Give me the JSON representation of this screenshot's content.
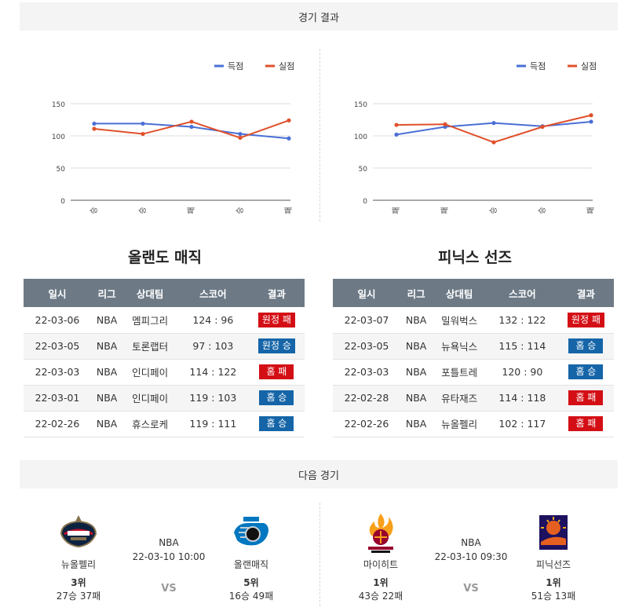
{
  "headers": {
    "results": "경기 결과",
    "next": "다음 경기"
  },
  "legend": {
    "scored": "득점",
    "conceded": "실점"
  },
  "colors": {
    "scored": "#4a6fd6",
    "conceded": "#e0502a",
    "win": "#1565a8",
    "loss": "#d30f15",
    "header_bg": "#6d7a86"
  },
  "chart_data": [
    {
      "type": "line",
      "categories": [
        "승",
        "승",
        "패",
        "승",
        "패"
      ],
      "series": [
        {
          "name": "득점",
          "values": [
            119,
            119,
            114,
            103,
            96
          ]
        },
        {
          "name": "실점",
          "values": [
            111,
            103,
            122,
            97,
            124
          ]
        }
      ],
      "yticks": [
        0,
        50,
        100,
        150
      ],
      "ylim": [
        0,
        150
      ],
      "legend": "top-right",
      "grid": true
    },
    {
      "type": "line",
      "categories": [
        "패",
        "패",
        "승",
        "승",
        "패"
      ],
      "series": [
        {
          "name": "득점",
          "values": [
            102,
            114,
            120,
            115,
            122
          ]
        },
        {
          "name": "실점",
          "values": [
            117,
            118,
            90,
            114,
            132
          ]
        }
      ],
      "yticks": [
        0,
        50,
        100,
        150
      ],
      "ylim": [
        0,
        150
      ],
      "legend": "top-right",
      "grid": true
    }
  ],
  "table_columns": [
    "일시",
    "리그",
    "상대팀",
    "스코어",
    "결과"
  ],
  "teams": [
    {
      "name": "올랜도 매직",
      "games": [
        {
          "date": "22-03-06",
          "league": "NBA",
          "opponent": "멤피그리",
          "score": "124 : 96",
          "result": "원정 패",
          "outcome": "loss"
        },
        {
          "date": "22-03-05",
          "league": "NBA",
          "opponent": "토론랩터",
          "score": "97 : 103",
          "result": "원정 승",
          "outcome": "win"
        },
        {
          "date": "22-03-03",
          "league": "NBA",
          "opponent": "인디페이",
          "score": "114 : 122",
          "result": "홈 패",
          "outcome": "loss"
        },
        {
          "date": "22-03-01",
          "league": "NBA",
          "opponent": "인디페이",
          "score": "119 : 103",
          "result": "홈 승",
          "outcome": "win"
        },
        {
          "date": "22-02-26",
          "league": "NBA",
          "opponent": "휴스로케",
          "score": "119 : 111",
          "result": "홈 승",
          "outcome": "win"
        }
      ]
    },
    {
      "name": "피닉스 선즈",
      "games": [
        {
          "date": "22-03-07",
          "league": "NBA",
          "opponent": "밀워벅스",
          "score": "132 : 122",
          "result": "원정 패",
          "outcome": "loss"
        },
        {
          "date": "22-03-05",
          "league": "NBA",
          "opponent": "뉴욕닉스",
          "score": "115 : 114",
          "result": "홈 승",
          "outcome": "win"
        },
        {
          "date": "22-03-03",
          "league": "NBA",
          "opponent": "포틀트레",
          "score": "120 : 90",
          "result": "홈 승",
          "outcome": "win"
        },
        {
          "date": "22-02-28",
          "league": "NBA",
          "opponent": "유타재즈",
          "score": "114 : 118",
          "result": "홈 패",
          "outcome": "loss"
        },
        {
          "date": "22-02-26",
          "league": "NBA",
          "opponent": "뉴올펠리",
          "score": "102 : 117",
          "result": "홈 패",
          "outcome": "loss"
        }
      ]
    }
  ],
  "next_games": [
    {
      "league": "NBA",
      "datetime": "22-03-10 10:00",
      "vs": "VS",
      "home": {
        "name": "뉴올펠리",
        "rank": "3위",
        "record": "27승 37패",
        "logo": "pelicans-logo"
      },
      "away": {
        "name": "올랜매직",
        "rank": "5위",
        "record": "16승 49패",
        "logo": "magic-logo"
      }
    },
    {
      "league": "NBA",
      "datetime": "22-03-10 09:30",
      "vs": "VS",
      "home": {
        "name": "마이히트",
        "rank": "1위",
        "record": "43승 22패",
        "logo": "heat-logo"
      },
      "away": {
        "name": "피닉선즈",
        "rank": "1위",
        "record": "51승 13패",
        "logo": "suns-logo"
      }
    }
  ]
}
